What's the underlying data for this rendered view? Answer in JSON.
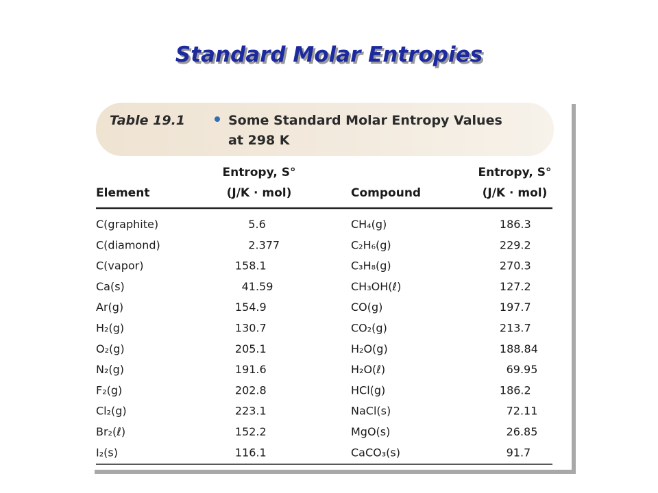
{
  "title": "Standard Molar Entropies",
  "table": {
    "label": "Table 19.1",
    "caption_lines": [
      "Some Standard Molar Entropy Values",
      "at 298 K"
    ],
    "headers": [
      {
        "lines": [
          "Element"
        ]
      },
      {
        "lines": [
          "Entropy, S°",
          "(J/K · mol)"
        ]
      },
      {
        "lines": [
          "Compound"
        ]
      },
      {
        "lines": [
          "Entropy, S°",
          "(J/K · mol)"
        ]
      }
    ],
    "rows": [
      [
        "C(graphite)",
        "5.6",
        "CH₄(g)",
        "186.3"
      ],
      [
        "C(diamond)",
        "2.377",
        "C₂H₆(g)",
        "229.2"
      ],
      [
        "C(vapor)",
        "158.1",
        "C₃H₈(g)",
        "270.3"
      ],
      [
        "Ca(s)",
        "41.59",
        "CH₃OH(ℓ)",
        "127.2"
      ],
      [
        "Ar(g)",
        "154.9",
        "CO(g)",
        "197.7"
      ],
      [
        "H₂(g)",
        "130.7",
        "CO₂(g)",
        "213.7"
      ],
      [
        "O₂(g)",
        "205.1",
        "H₂O(g)",
        "188.84"
      ],
      [
        "N₂(g)",
        "191.6",
        "H₂O(ℓ)",
        "69.95"
      ],
      [
        "F₂(g)",
        "202.8",
        "HCl(g)",
        "186.2"
      ],
      [
        "Cl₂(g)",
        "223.1",
        "NaCl(s)",
        "72.11"
      ],
      [
        "Br₂(ℓ)",
        "152.2",
        "MgO(s)",
        "26.85"
      ],
      [
        "I₂(s)",
        "116.1",
        "CaCO₃(s)",
        "91.7"
      ]
    ]
  }
}
